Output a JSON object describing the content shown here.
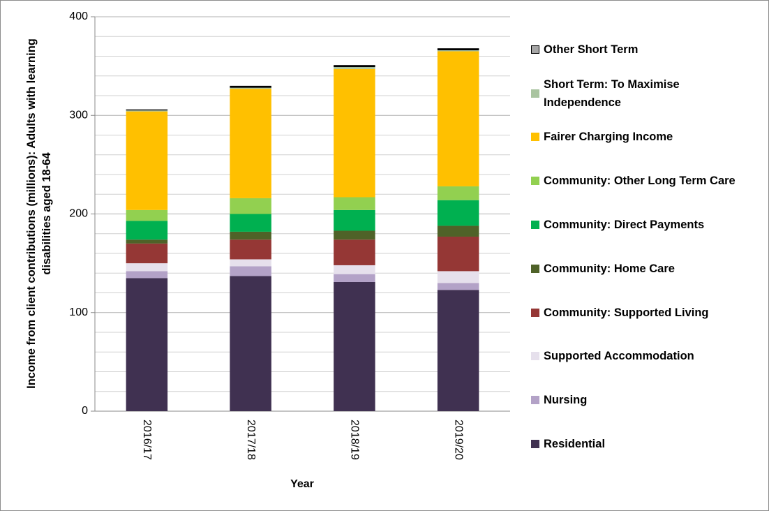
{
  "chart_data": {
    "type": "stacked_bar",
    "x_label": "Year",
    "y_label": "Income from client contributions  (millions): Adults with learning disabilities aged 18-64",
    "categories": [
      "2016/17",
      "2017/18",
      "2018/19",
      "2019/20"
    ],
    "series": [
      {
        "name": "Residential",
        "color": "#403151",
        "values": [
          135,
          137,
          131,
          123
        ]
      },
      {
        "name": "Nursing",
        "color": "#b3a2c7",
        "values": [
          7,
          10,
          8,
          7
        ]
      },
      {
        "name": "Supported Accommodation",
        "color": "#e6e0ec",
        "values": [
          8,
          7,
          9,
          12
        ]
      },
      {
        "name": "Community: Supported Living",
        "color": "#953735",
        "values": [
          20,
          20,
          26,
          35
        ]
      },
      {
        "name": "Community: Home Care",
        "color": "#4f6228",
        "values": [
          4,
          8,
          9,
          11
        ]
      },
      {
        "name": "Community: Direct Payments",
        "color": "#00b050",
        "values": [
          19,
          18,
          21,
          26
        ]
      },
      {
        "name": "Community: Other Long Term Care",
        "color": "#92d050",
        "values": [
          11,
          16,
          13,
          14
        ]
      },
      {
        "name": "Fairer Charging Income",
        "color": "#ffc000",
        "values": [
          100,
          111,
          130,
          137
        ]
      },
      {
        "name": "Short Term: To Maximise Independence",
        "color": "#a9c4a0",
        "values": [
          1,
          1,
          2,
          1
        ]
      },
      {
        "name": "Other Short Term",
        "color": "#000000",
        "values": [
          1,
          2,
          2,
          2
        ]
      }
    ],
    "ylim": [
      0,
      400
    ],
    "yticks": [
      0,
      100,
      200,
      300,
      400
    ],
    "minor_yticks": [
      20,
      40,
      60,
      80,
      120,
      140,
      160,
      180,
      220,
      240,
      260,
      280,
      320,
      340,
      360,
      380
    ],
    "grid": true,
    "legend": "right"
  }
}
